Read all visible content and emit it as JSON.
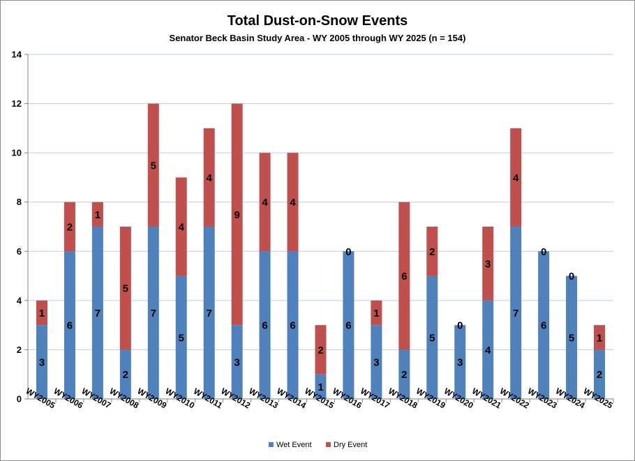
{
  "chart_data": {
    "type": "bar",
    "stacked": true,
    "title": "Total Dust-on-Snow Events",
    "subtitle": "Senator Beck Basin Study Area - WY 2005 through WY 2025 (n = 154)",
    "xlabel": "",
    "ylabel": "",
    "ylim": [
      0,
      14
    ],
    "yticks": [
      0,
      2,
      4,
      6,
      8,
      10,
      12,
      14
    ],
    "grid": true,
    "legend_position": "bottom",
    "categories": [
      "WY2005",
      "WY2006",
      "WY2007",
      "WY2008",
      "WY2009",
      "WY2010",
      "WY2011",
      "WY2012",
      "WY2013",
      "WY2014",
      "WY2015",
      "WY2016",
      "WY2017",
      "WY2018",
      "WY2019",
      "WY2020",
      "WY2021",
      "WY2022",
      "WY2023",
      "WY2024",
      "WY2025"
    ],
    "series": [
      {
        "name": "Wet Event",
        "color": "#4f81bd",
        "values": [
          3,
          6,
          7,
          2,
          7,
          5,
          7,
          3,
          6,
          6,
          1,
          6,
          3,
          2,
          5,
          3,
          4,
          7,
          6,
          5,
          2
        ]
      },
      {
        "name": "Dry Event",
        "color": "#c0504d",
        "values": [
          1,
          2,
          1,
          5,
          5,
          4,
          4,
          9,
          4,
          4,
          2,
          0,
          1,
          6,
          2,
          0,
          3,
          4,
          0,
          0,
          1
        ]
      }
    ]
  }
}
